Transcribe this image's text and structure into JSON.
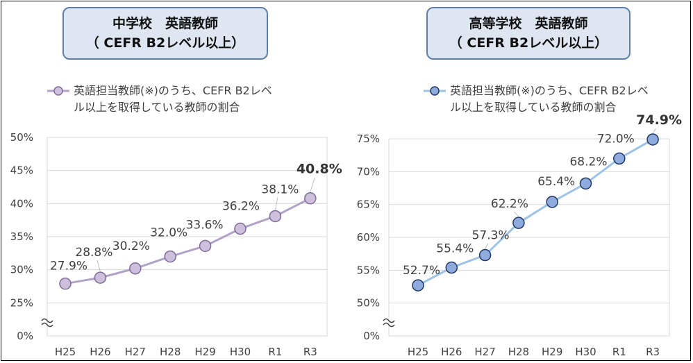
{
  "chart_data": [
    {
      "type": "line",
      "title_line1": "中学校　英語教師",
      "title_line2": "（ CEFR B2レベル以上）",
      "legend": [
        "英語担当教師(※)のうち、CEFR B2レベ",
        "ル以上を取得している教師の割合"
      ],
      "categories": [
        "H25",
        "H26",
        "H27",
        "H28",
        "H29",
        "H30",
        "R1",
        "R3"
      ],
      "series": [
        {
          "values": [
            27.9,
            28.8,
            30.2,
            32.0,
            33.6,
            36.2,
            38.1,
            40.8
          ],
          "labels": [
            "27.9%",
            "28.8%",
            "30.2%",
            "32.0%",
            "33.6%",
            "36.2%",
            "38.1%",
            "40.8%"
          ]
        }
      ],
      "yticks": [
        "50%",
        "45%",
        "40%",
        "35%",
        "30%",
        "25%",
        "0%"
      ],
      "ytick_values": [
        50,
        45,
        40,
        35,
        30,
        25,
        20
      ],
      "axis_break": true,
      "ylim": [
        20,
        50
      ],
      "grid": true,
      "line_color": "#b3a2c7",
      "marker_fill": "#cdc0dd",
      "marker_stroke": "#7f6b9a",
      "highlight_last": true
    },
    {
      "type": "line",
      "title_line1": "高等学校　英語教師",
      "title_line2": "（ CEFR B2レベル以上）",
      "legend": [
        "英語担当教師(※)のうち、CEFR B2レベ",
        "ル以上を取得している教師の割合"
      ],
      "categories": [
        "H25",
        "H26",
        "H27",
        "H28",
        "H29",
        "H30",
        "R1",
        "R3"
      ],
      "series": [
        {
          "values": [
            52.7,
            55.4,
            57.3,
            62.2,
            65.4,
            68.2,
            72.0,
            74.9
          ],
          "labels": [
            "52.7%",
            "55.4%",
            "57.3%",
            "62.2%",
            "65.4%",
            "68.2%",
            "72.0%",
            "74.9%"
          ]
        }
      ],
      "yticks": [
        "75%",
        "70%",
        "65%",
        "60%",
        "55%",
        "50%",
        "0%"
      ],
      "ytick_values": [
        75,
        70,
        65,
        60,
        55,
        50,
        45
      ],
      "axis_break": true,
      "ylim": [
        45,
        75
      ],
      "grid": true,
      "line_color": "#9dc3e6",
      "marker_fill": "#8faadc",
      "marker_stroke": "#1f3864",
      "highlight_last": true
    }
  ]
}
